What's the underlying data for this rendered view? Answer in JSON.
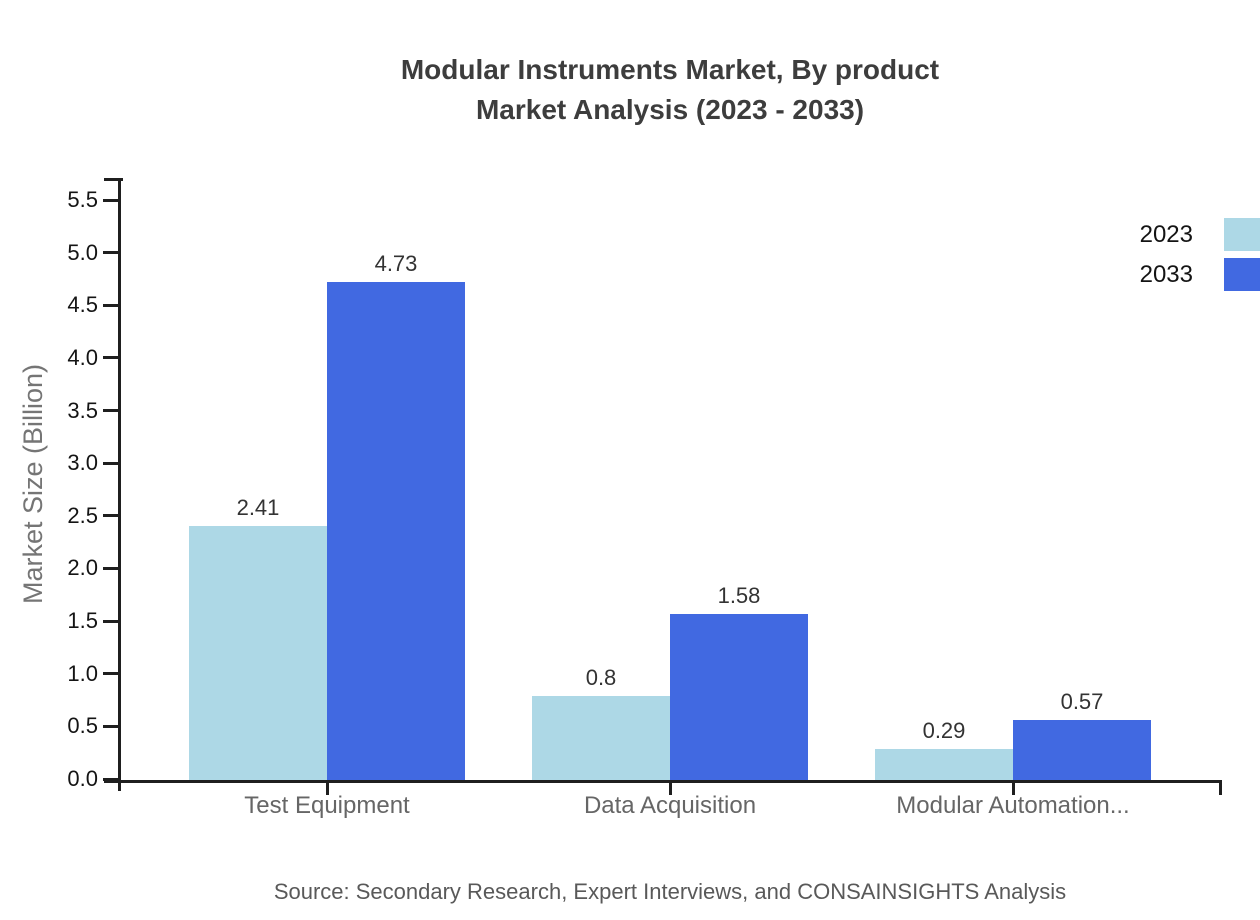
{
  "title": {
    "line1": "Modular Instruments Market, By product",
    "line2": "Market Analysis (2023 - 2033)"
  },
  "source": "Source: Secondary Research, Expert Interviews, and CONSAINSIGHTS Analysis",
  "chart_data": {
    "type": "bar",
    "title": "Modular Instruments Market, By product Market Analysis (2023 - 2033)",
    "categories": [
      "Test Equipment",
      "Data Acquisition",
      "Modular Automation..."
    ],
    "series": [
      {
        "name": "2023",
        "color": "#ADD8E6",
        "values": [
          2.41,
          0.8,
          0.29
        ],
        "labels": [
          "2.41",
          "0.8",
          "0.29"
        ]
      },
      {
        "name": "2033",
        "color": "#4169E1",
        "values": [
          4.73,
          1.58,
          0.57
        ],
        "labels": [
          "4.73",
          "1.58",
          "0.57"
        ]
      }
    ],
    "xlabel": "",
    "ylabel": "Market Size (Billion)",
    "ylim": [
      0.0,
      5.5
    ],
    "ytick_step": 0.5,
    "yticks": [
      "0.0",
      "0.5",
      "1.0",
      "1.5",
      "2.0",
      "2.5",
      "3.0",
      "3.5",
      "4.0",
      "4.5",
      "5.0",
      "5.5"
    ],
    "grid": false,
    "legend_position": "top-right"
  }
}
